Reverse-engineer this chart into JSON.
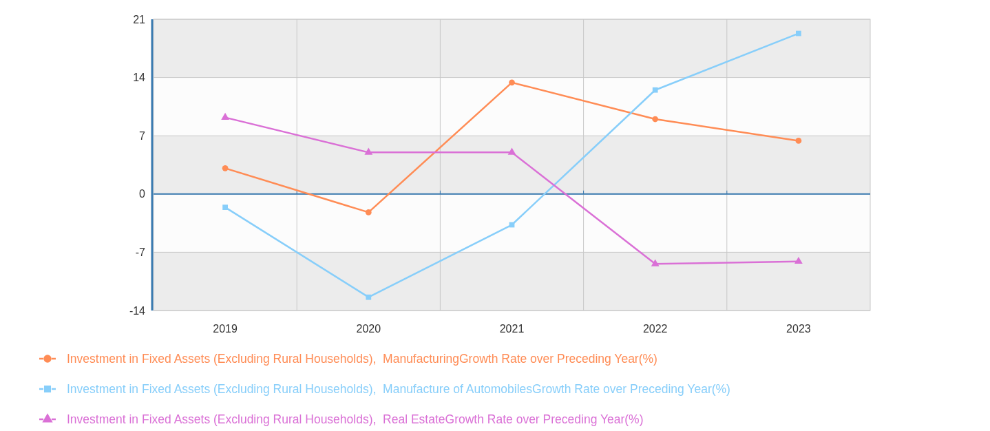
{
  "chart_data": {
    "type": "line",
    "categories": [
      "2019",
      "2020",
      "2021",
      "2022",
      "2023"
    ],
    "ylim": [
      -14,
      21
    ],
    "yticks": [
      -14,
      -7,
      0,
      7,
      14,
      21
    ],
    "grid": true,
    "ref_lines": [
      {
        "axis": "y",
        "value": 0,
        "color": "#3a7ab0"
      }
    ],
    "legend": "bottom",
    "series": [
      {
        "name": "Investment in Fixed Assets (Excluding Rural Households),  ManufacturingGrowth Rate over Preceding Year(%)",
        "color": "#ff8c55",
        "marker": "circle",
        "values": [
          3.1,
          -2.2,
          13.4,
          9.0,
          6.4
        ]
      },
      {
        "name": "Investment in Fixed Assets (Excluding Rural Households),  Manufacture of AutomobilesGrowth Rate over Preceding Year(%)",
        "color": "#87cefa",
        "marker": "square",
        "values": [
          -1.6,
          -12.4,
          -3.7,
          12.5,
          19.3
        ]
      },
      {
        "name": "Investment in Fixed Assets (Excluding Rural Households),  Real EstateGrowth Rate over Preceding Year(%)",
        "color": "#da70d6",
        "marker": "triangle",
        "values": [
          9.2,
          5.0,
          5.0,
          -8.4,
          -8.1
        ]
      }
    ]
  }
}
